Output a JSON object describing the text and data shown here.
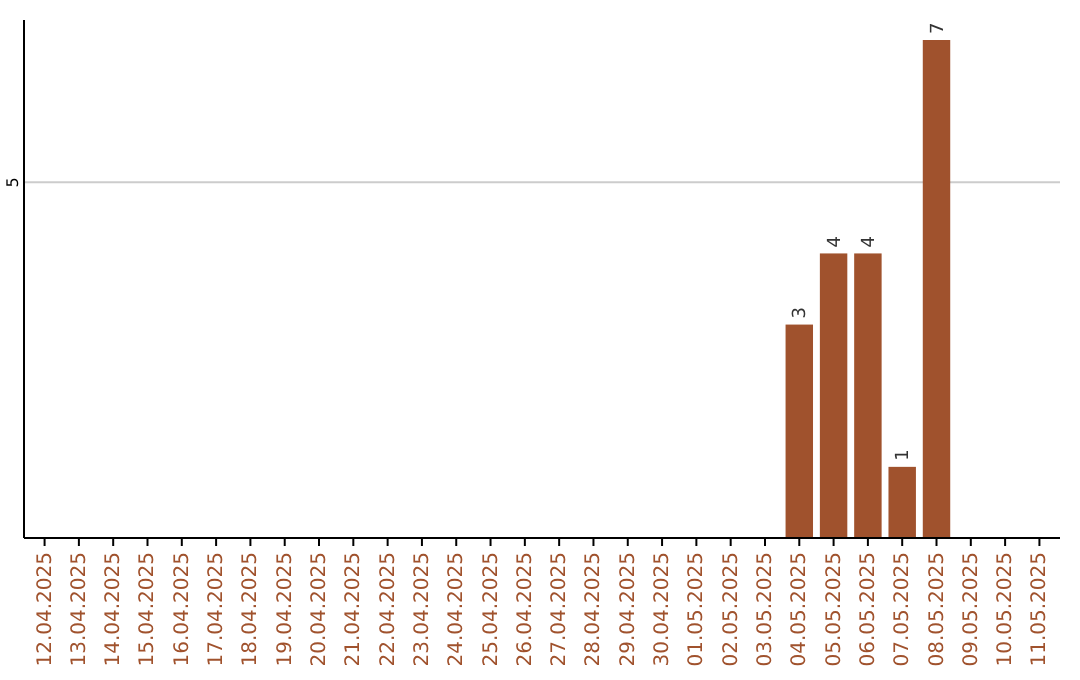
{
  "chart_data": {
    "type": "bar",
    "categories": [
      "12.04.2025",
      "13.04.2025",
      "14.04.2025",
      "15.04.2025",
      "16.04.2025",
      "17.04.2025",
      "18.04.2025",
      "19.04.2025",
      "20.04.2025",
      "21.04.2025",
      "22.04.2025",
      "23.04.2025",
      "24.04.2025",
      "25.04.2025",
      "26.04.2025",
      "27.04.2025",
      "28.04.2025",
      "29.04.2025",
      "30.04.2025",
      "01.05.2025",
      "02.05.2025",
      "03.05.2025",
      "04.05.2025",
      "05.05.2025",
      "06.05.2025",
      "07.05.2025",
      "08.05.2025",
      "09.05.2025",
      "10.05.2025",
      "11.05.2025"
    ],
    "values": [
      null,
      null,
      null,
      null,
      null,
      null,
      null,
      null,
      null,
      null,
      null,
      null,
      null,
      null,
      null,
      null,
      null,
      null,
      null,
      null,
      null,
      null,
      3,
      4,
      4,
      1,
      7,
      null,
      null,
      null
    ],
    "color": "#a0522d",
    "ylim": [
      0,
      7
    ],
    "yticks": [
      5
    ],
    "grid": "y",
    "data_labels": true
  }
}
